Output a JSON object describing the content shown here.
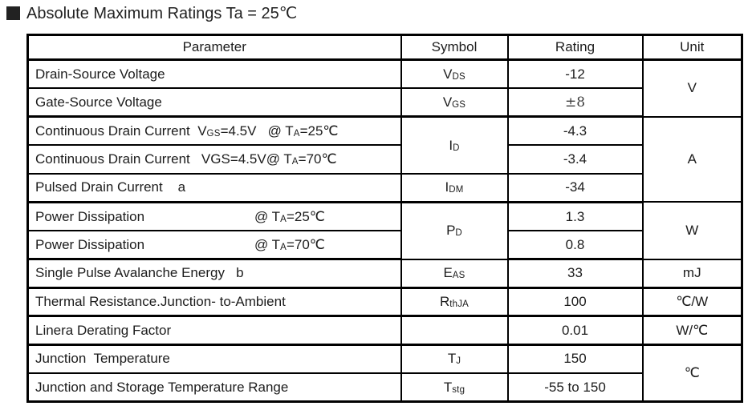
{
  "title": {
    "bullet": "section-marker",
    "text": "Absolute Maximum Ratings Ta = 25℃"
  },
  "colors": {
    "text": "#1c1c1c",
    "border": "#000000",
    "background": "#ffffff"
  },
  "table": {
    "headers": [
      "Parameter",
      "Symbol",
      "Rating",
      "Unit"
    ],
    "rows": [
      {
        "param": [
          {
            "t": "Drain-Source Voltage"
          }
        ],
        "symbol": [
          {
            "t": "V"
          },
          {
            "t": "DS",
            "sub": true
          }
        ],
        "rating": "-12"
      },
      {
        "param": [
          {
            "t": "Gate-Source Voltage"
          }
        ],
        "symbol": [
          {
            "t": "V"
          },
          {
            "t": "GS",
            "sub": true
          }
        ],
        "rating": "±8"
      },
      {
        "param": [
          {
            "t": "Continuous Drain Current  V"
          },
          {
            "t": "GS",
            "sub": true
          },
          {
            "t": "=4.5V   @ T"
          },
          {
            "t": "A",
            "sub": true
          },
          {
            "t": "=25℃"
          }
        ],
        "symbol": [
          {
            "t": "I"
          },
          {
            "t": "D",
            "sub": true
          }
        ],
        "rating": "-4.3"
      },
      {
        "param": [
          {
            "t": "Continuous Drain Current   VGS=4.5V@ T"
          },
          {
            "t": "A",
            "sub": true
          },
          {
            "t": "=70℃"
          }
        ],
        "symbol": [],
        "rating": "-3.4"
      },
      {
        "param": [
          {
            "t": "Pulsed Drain Current    a"
          }
        ],
        "symbol": [
          {
            "t": "I"
          },
          {
            "t": "DM",
            "sub": true
          }
        ],
        "rating": "-34"
      },
      {
        "param": [
          {
            "t": "Power Dissipation"
          }
        ],
        "cond": [
          {
            "t": "@ T"
          },
          {
            "t": "A",
            "sub": true
          },
          {
            "t": "=25℃"
          }
        ],
        "symbol": [
          {
            "t": "P"
          },
          {
            "t": "D",
            "sub": true
          }
        ],
        "rating": "1.3"
      },
      {
        "param": [
          {
            "t": "Power Dissipation"
          }
        ],
        "cond": [
          {
            "t": "@ T"
          },
          {
            "t": "A",
            "sub": true
          },
          {
            "t": "=70℃"
          }
        ],
        "symbol": [],
        "rating": "0.8"
      },
      {
        "param": [
          {
            "t": "Single Pulse Avalanche Energy   b"
          }
        ],
        "symbol": [
          {
            "t": "E"
          },
          {
            "t": "AS",
            "sub": true
          }
        ],
        "rating": "33"
      },
      {
        "param": [
          {
            "t": "Thermal Resistance.Junction- to-Ambient"
          }
        ],
        "symbol": [
          {
            "t": "R"
          },
          {
            "t": "thJA",
            "sub": true
          }
        ],
        "rating": "100"
      },
      {
        "param": [
          {
            "t": "Linera Derating Factor"
          }
        ],
        "symbol": [],
        "rating": "0.01"
      },
      {
        "param": [
          {
            "t": "Junction  Temperature"
          }
        ],
        "symbol": [
          {
            "t": "T"
          },
          {
            "t": "J",
            "sub": true
          }
        ],
        "rating": "150"
      },
      {
        "param": [
          {
            "t": "Junction and Storage Temperature Range"
          }
        ],
        "symbol": [
          {
            "t": "T"
          },
          {
            "t": "stg",
            "sub": true
          }
        ],
        "rating": "-55 to 150"
      }
    ],
    "units": [
      {
        "text": "V",
        "rows": 2
      },
      {
        "text": "A",
        "rows": 3
      },
      {
        "text": "W",
        "rows": 2
      },
      {
        "text": "mJ",
        "rows": 1
      },
      {
        "text": "℃/W",
        "rows": 1
      },
      {
        "text": "W/℃",
        "rows": 1
      },
      {
        "text": "℃",
        "rows": 2
      }
    ]
  }
}
